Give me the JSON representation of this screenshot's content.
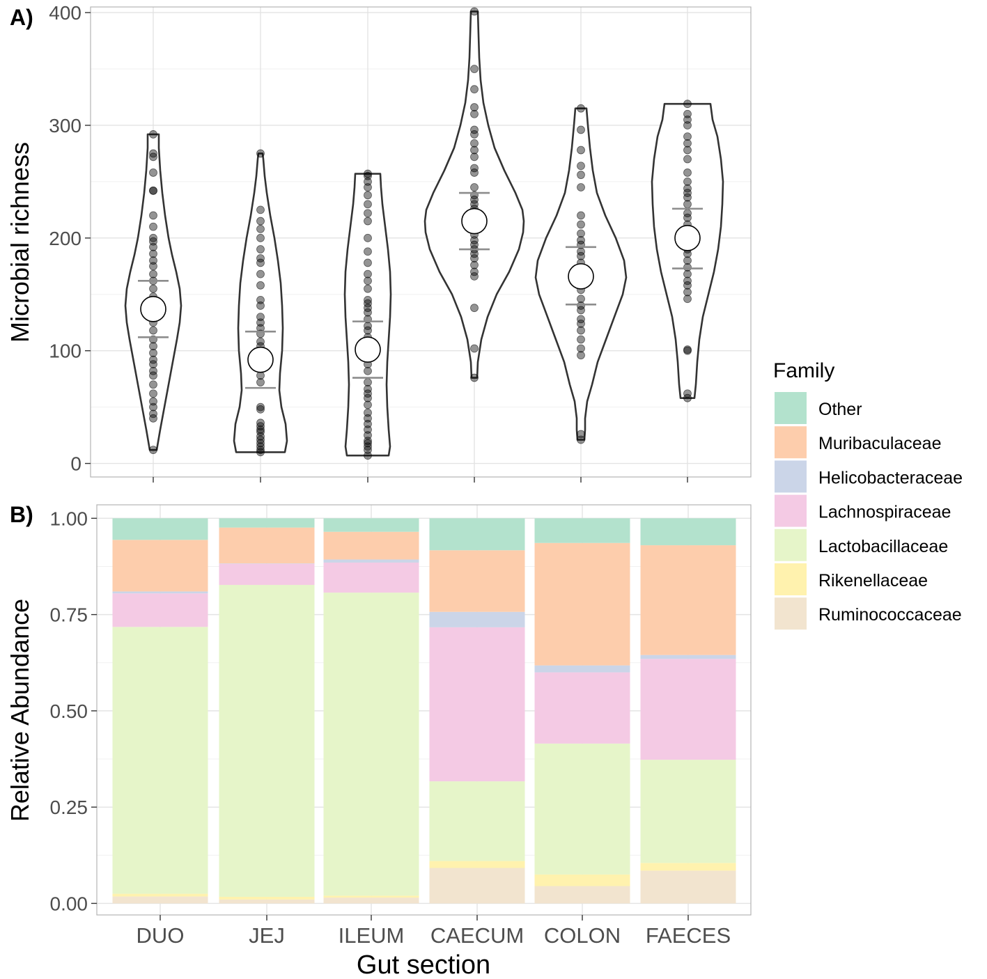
{
  "chart_data": [
    {
      "type": "violin",
      "panel_label": "A)",
      "ylabel": "Microbial richness",
      "ylim": [
        -12,
        405
      ],
      "yticks": [
        0,
        100,
        200,
        300,
        400
      ],
      "ytick_labels": [
        "0",
        "100",
        "200",
        "300",
        "400"
      ],
      "categories": [
        "DUO",
        "JEJ",
        "ILEUM",
        "CAECUM",
        "COLON",
        "FAECES"
      ],
      "groups": [
        {
          "name": "DUO",
          "mean": 137,
          "se_low": 112,
          "se_high": 162,
          "min": 12,
          "max": 292,
          "profile": [
            [
              12,
              5
            ],
            [
              30,
              10
            ],
            [
              50,
              16
            ],
            [
              70,
              22
            ],
            [
              90,
              28
            ],
            [
              110,
              34
            ],
            [
              125,
              38
            ],
            [
              140,
              40
            ],
            [
              155,
              38
            ],
            [
              170,
              33
            ],
            [
              185,
              27
            ],
            [
              200,
              22
            ],
            [
              220,
              17
            ],
            [
              240,
              13
            ],
            [
              260,
              10
            ],
            [
              280,
              8
            ],
            [
              292,
              8
            ]
          ],
          "points": [
            12,
            40,
            44,
            50,
            55,
            62,
            70,
            78,
            82,
            88,
            92,
            98,
            104,
            110,
            118,
            125,
            130,
            136,
            142,
            148,
            155,
            162,
            168,
            175,
            180,
            186,
            192,
            197,
            200,
            210,
            220,
            242,
            242,
            258,
            272,
            275,
            292
          ]
        },
        {
          "name": "JEJ",
          "mean": 92,
          "se_low": 67,
          "se_high": 117,
          "min": 10,
          "max": 275,
          "profile": [
            [
              10,
              35
            ],
            [
              20,
              38
            ],
            [
              35,
              36
            ],
            [
              50,
              30
            ],
            [
              65,
              27
            ],
            [
              80,
              28
            ],
            [
              100,
              31
            ],
            [
              120,
              32
            ],
            [
              140,
              31
            ],
            [
              160,
              29
            ],
            [
              180,
              25
            ],
            [
              200,
              20
            ],
            [
              220,
              14
            ],
            [
              240,
              9
            ],
            [
              255,
              6
            ],
            [
              270,
              4
            ],
            [
              275,
              3
            ]
          ],
          "points": [
            10,
            12,
            15,
            18,
            21,
            24,
            28,
            30,
            33,
            36,
            48,
            50,
            72,
            78,
            85,
            90,
            96,
            100,
            104,
            108,
            115,
            120,
            125,
            130,
            140,
            145,
            158,
            168,
            178,
            182,
            190,
            200,
            208,
            215,
            225,
            275
          ]
        },
        {
          "name": "ILEUM",
          "mean": 101,
          "se_low": 76,
          "se_high": 126,
          "min": 7,
          "max": 257,
          "profile": [
            [
              7,
              30
            ],
            [
              15,
              32
            ],
            [
              30,
              30
            ],
            [
              50,
              28
            ],
            [
              70,
              27
            ],
            [
              90,
              28
            ],
            [
              110,
              30
            ],
            [
              130,
              32
            ],
            [
              150,
              33
            ],
            [
              170,
              32
            ],
            [
              190,
              29
            ],
            [
              210,
              25
            ],
            [
              230,
              21
            ],
            [
              245,
              19
            ],
            [
              257,
              18
            ]
          ],
          "points": [
            7,
            12,
            15,
            18,
            20,
            25,
            30,
            35,
            40,
            45,
            52,
            58,
            62,
            66,
            72,
            82,
            88,
            95,
            100,
            105,
            112,
            118,
            122,
            128,
            134,
            138,
            142,
            145,
            155,
            162,
            168,
            178,
            188,
            200,
            215,
            222,
            230,
            238,
            245,
            250,
            255,
            257
          ]
        },
        {
          "name": "CAECUM",
          "mean": 215,
          "se_low": 190,
          "se_high": 240,
          "min": 76,
          "max": 401,
          "profile": [
            [
              76,
              4
            ],
            [
              90,
              5
            ],
            [
              110,
              10
            ],
            [
              130,
              19
            ],
            [
              150,
              32
            ],
            [
              170,
              50
            ],
            [
              190,
              64
            ],
            [
              205,
              70
            ],
            [
              215,
              71
            ],
            [
              225,
              69
            ],
            [
              240,
              59
            ],
            [
              260,
              43
            ],
            [
              280,
              29
            ],
            [
              300,
              20
            ],
            [
              320,
              13
            ],
            [
              340,
              9
            ],
            [
              360,
              7
            ],
            [
              380,
              6
            ],
            [
              401,
              5
            ]
          ],
          "points": [
            76,
            102,
            138,
            166,
            170,
            176,
            182,
            186,
            190,
            194,
            198,
            203,
            208,
            212,
            218,
            222,
            226,
            230,
            234,
            238,
            245,
            258,
            262,
            272,
            278,
            284,
            292,
            296,
            310,
            316,
            332,
            350,
            401
          ]
        },
        {
          "name": "COLON",
          "mean": 166,
          "se_low": 141,
          "se_high": 192,
          "min": 21,
          "max": 315,
          "profile": [
            [
              21,
              5
            ],
            [
              30,
              6
            ],
            [
              40,
              6
            ],
            [
              55,
              9
            ],
            [
              70,
              16
            ],
            [
              90,
              24
            ],
            [
              110,
              36
            ],
            [
              130,
              48
            ],
            [
              150,
              60
            ],
            [
              165,
              65
            ],
            [
              180,
              62
            ],
            [
              200,
              50
            ],
            [
              220,
              35
            ],
            [
              240,
              23
            ],
            [
              260,
              17
            ],
            [
              280,
              13
            ],
            [
              300,
              10
            ],
            [
              315,
              8
            ]
          ],
          "points": [
            21,
            26,
            96,
            102,
            110,
            118,
            124,
            128,
            136,
            140,
            146,
            154,
            160,
            166,
            172,
            178,
            184,
            188,
            194,
            198,
            204,
            212,
            220,
            245,
            256,
            264,
            278,
            296,
            315
          ]
        },
        {
          "name": "FAECES",
          "mean": 200,
          "se_low": 173,
          "se_high": 226,
          "min": 58,
          "max": 319,
          "profile": [
            [
              58,
              10
            ],
            [
              70,
              12
            ],
            [
              90,
              14
            ],
            [
              110,
              17
            ],
            [
              130,
              22
            ],
            [
              150,
              30
            ],
            [
              170,
              38
            ],
            [
              190,
              44
            ],
            [
              210,
              48
            ],
            [
              230,
              50
            ],
            [
              250,
              51
            ],
            [
              270,
              48
            ],
            [
              290,
              43
            ],
            [
              305,
              36
            ],
            [
              319,
              33
            ]
          ],
          "points": [
            58,
            62,
            100,
            101,
            146,
            152,
            158,
            162,
            168,
            174,
            180,
            186,
            190,
            196,
            204,
            212,
            218,
            222,
            230,
            236,
            240,
            244,
            250,
            258,
            270,
            278,
            284,
            290,
            300,
            305,
            310,
            319
          ]
        }
      ]
    },
    {
      "type": "stacked_bar",
      "panel_label": "B)",
      "xlabel": "Gut section",
      "ylabel": "Relative Abundance",
      "ylim": [
        -0.03,
        1.035
      ],
      "yticks": [
        0.0,
        0.25,
        0.5,
        0.75,
        1.0
      ],
      "ytick_labels": [
        "0.00",
        "0.25",
        "0.50",
        "0.75",
        "1.00"
      ],
      "categories": [
        "DUO",
        "JEJ",
        "ILEUM",
        "CAECUM",
        "COLON",
        "FAECES"
      ],
      "series": [
        {
          "name": "Ruminococcaceae",
          "color": "#F2E4CF",
          "values": [
            0.018,
            0.01,
            0.015,
            0.092,
            0.045,
            0.085
          ]
        },
        {
          "name": "Rikenellaceae",
          "color": "#FFF2AE",
          "values": [
            0.007,
            0.007,
            0.005,
            0.018,
            0.03,
            0.02
          ]
        },
        {
          "name": "Lactobacillaceae",
          "color": "#E6F5C9",
          "values": [
            0.693,
            0.81,
            0.787,
            0.207,
            0.34,
            0.268
          ]
        },
        {
          "name": "Lachnospiraceae",
          "color": "#F4CAE4",
          "values": [
            0.087,
            0.055,
            0.078,
            0.4,
            0.185,
            0.262
          ]
        },
        {
          "name": "Helicobacteraceae",
          "color": "#CBD5E8",
          "values": [
            0.005,
            0.001,
            0.008,
            0.04,
            0.018,
            0.01
          ]
        },
        {
          "name": "Muribaculaceae",
          "color": "#FDCDAC",
          "values": [
            0.134,
            0.093,
            0.072,
            0.16,
            0.318,
            0.285
          ]
        },
        {
          "name": "Other",
          "color": "#B3E2CD",
          "values": [
            0.056,
            0.024,
            0.035,
            0.083,
            0.064,
            0.07
          ]
        }
      ]
    }
  ],
  "legend": {
    "title": "Family",
    "items": [
      {
        "label": "Other",
        "color": "#B3E2CD"
      },
      {
        "label": "Muribaculaceae",
        "color": "#FDCDAC"
      },
      {
        "label": "Helicobacteraceae",
        "color": "#CBD5E8"
      },
      {
        "label": "Lachnospiraceae",
        "color": "#F4CAE4"
      },
      {
        "label": "Lactobacillaceae",
        "color": "#E6F5C9"
      },
      {
        "label": "Rikenellaceae",
        "color": "#FFF2AE"
      },
      {
        "label": "Ruminococcaceae",
        "color": "#F2E4CF"
      }
    ]
  }
}
